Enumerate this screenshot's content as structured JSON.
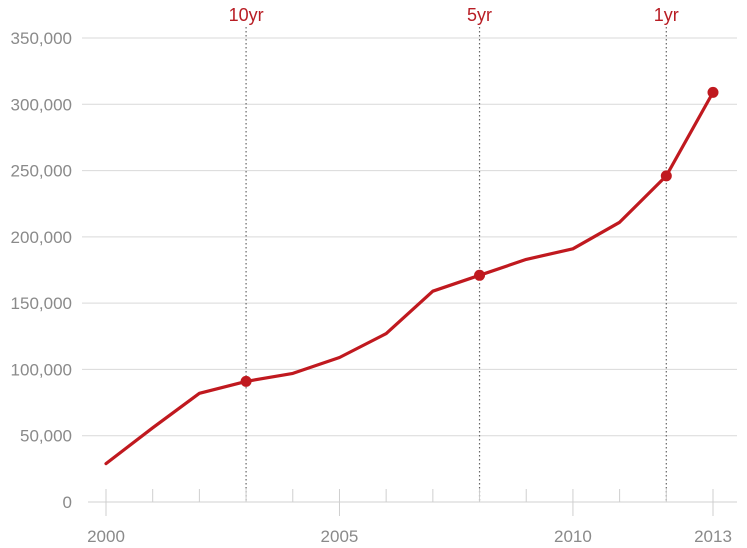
{
  "chart_data": {
    "type": "line",
    "title": "",
    "xlabel": "",
    "ylabel": "",
    "xlim": [
      2000,
      2013
    ],
    "ylim": [
      0,
      350000
    ],
    "grid": true,
    "y_ticks": [
      0,
      50000,
      100000,
      150000,
      200000,
      250000,
      300000,
      350000
    ],
    "y_tick_labels": [
      "0",
      "50,000",
      "100,000",
      "150,000",
      "200,000",
      "250,000",
      "300,000",
      "350,000"
    ],
    "x_minor_ticks": [
      2000,
      2001,
      2002,
      2003,
      2004,
      2005,
      2006,
      2007,
      2008,
      2009,
      2010,
      2011,
      2012,
      2013
    ],
    "x_tick_labels": [
      {
        "x": 2000,
        "label": "2000"
      },
      {
        "x": 2005,
        "label": "2005"
      },
      {
        "x": 2010,
        "label": "2010"
      },
      {
        "x": 2013,
        "label": "2013"
      }
    ],
    "series": [
      {
        "color": "#c0191f",
        "x": [
          2000,
          2001,
          2002,
          2003,
          2004,
          2005,
          2006,
          2007,
          2008,
          2009,
          2010,
          2011,
          2012,
          2013
        ],
        "y": [
          29000,
          56000,
          82000,
          91000,
          97000,
          109000,
          127000,
          159000,
          171000,
          183000,
          191000,
          211000,
          246000,
          309000
        ],
        "highlighted_x": [
          2003,
          2008,
          2012,
          2013
        ]
      }
    ],
    "annotations": [
      {
        "x": 2003,
        "label": "10yr"
      },
      {
        "x": 2008,
        "label": "5yr"
      },
      {
        "x": 2012,
        "label": "1yr"
      }
    ],
    "colors": {
      "line": "#c0191f",
      "annotation": "#b81d24",
      "grid": "#d9d9d9",
      "text": "#8a8a8a"
    }
  }
}
